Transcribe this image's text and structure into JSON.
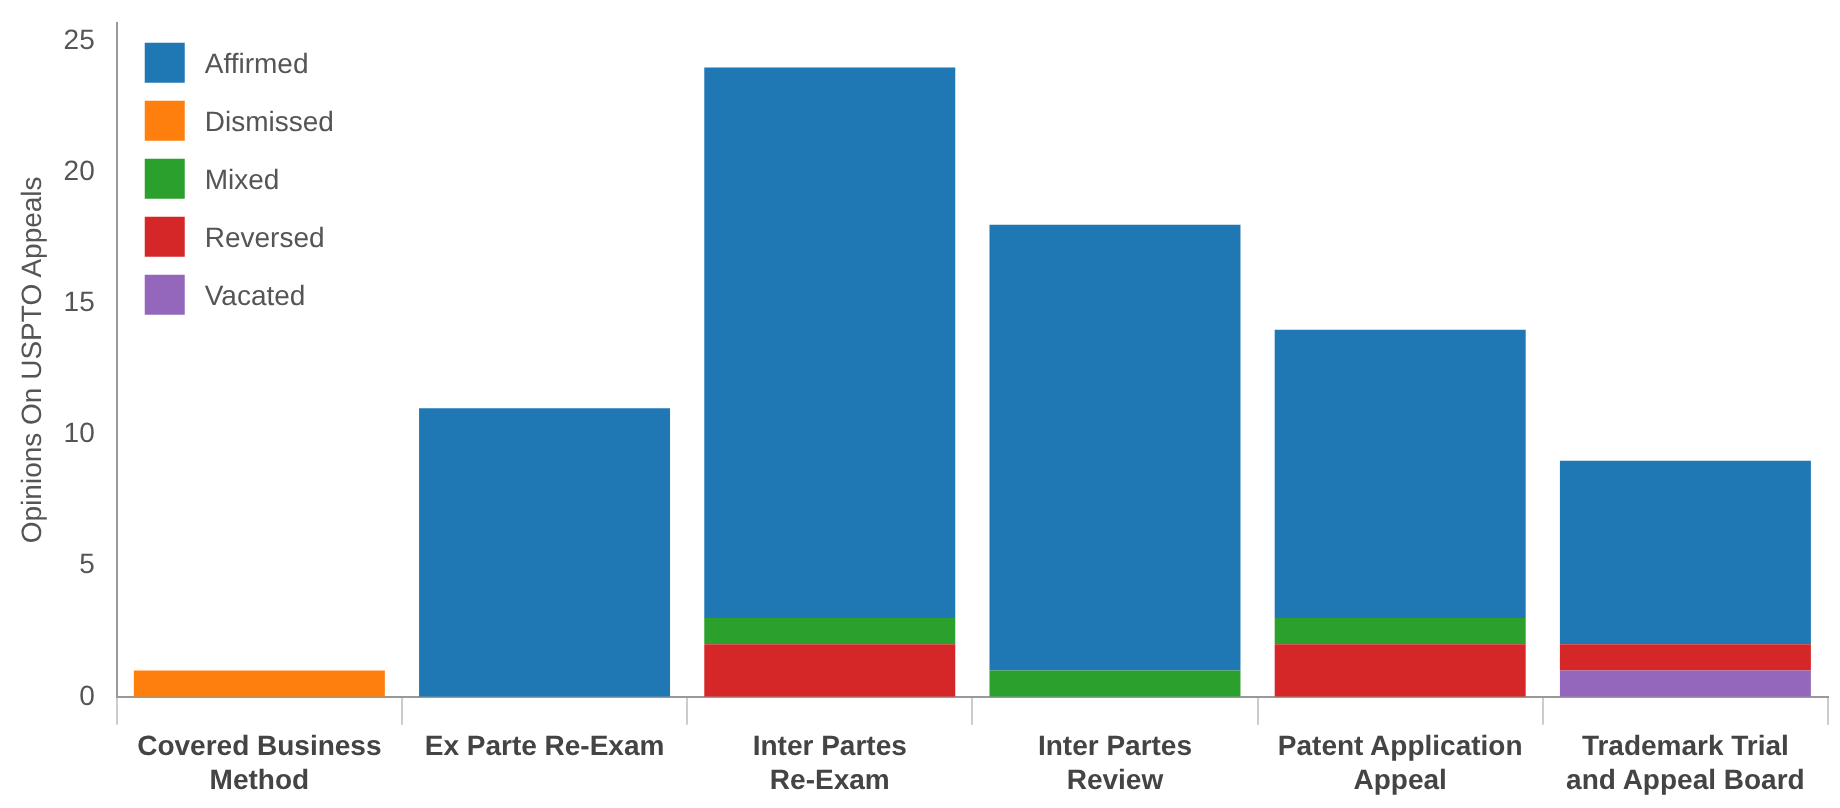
{
  "chart_data": {
    "type": "bar",
    "ylabel": "Opinions On USPTO Appeals",
    "categories": [
      "Covered Business Method",
      "Ex Parte Re-Exam",
      "Inter Partes Re-Exam",
      "Inter Partes Review",
      "Patent Application Appeal",
      "Trademark Trial and Appeal Board"
    ],
    "stacked": true,
    "series": [
      {
        "name": "Vacated",
        "color": "#9467bd",
        "values": [
          null,
          null,
          null,
          null,
          null,
          1
        ]
      },
      {
        "name": "Reversed",
        "color": "#d62728",
        "values": [
          null,
          null,
          2,
          null,
          2,
          1
        ]
      },
      {
        "name": "Mixed",
        "color": "#2ca02c",
        "values": [
          null,
          null,
          1,
          1,
          1,
          null
        ]
      },
      {
        "name": "Dismissed",
        "color": "#ff7f0e",
        "values": [
          1,
          null,
          null,
          null,
          null,
          null
        ]
      },
      {
        "name": "Affirmed",
        "color": "#1f77b4",
        "values": [
          null,
          11,
          21,
          17,
          11,
          7
        ]
      }
    ],
    "ylim": [
      0,
      25.7
    ],
    "yticks": [
      0,
      5,
      10,
      15,
      20,
      25
    ],
    "grid": false,
    "legend": "top left"
  }
}
